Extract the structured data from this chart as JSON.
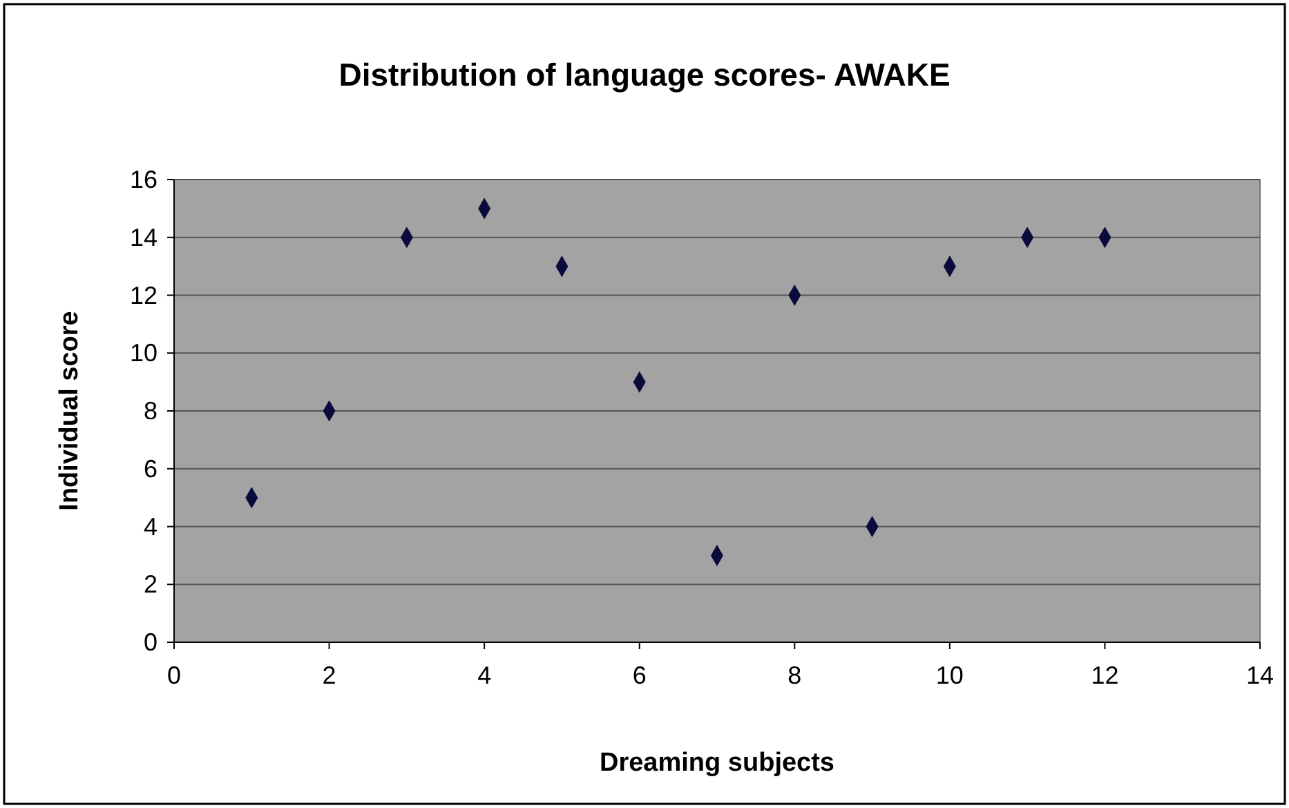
{
  "chart_data": {
    "type": "scatter",
    "title": "Distribution of language scores- AWAKE",
    "xlabel": "Dreaming subjects",
    "ylabel": "Individual score",
    "x": [
      1,
      2,
      3,
      4,
      5,
      6,
      7,
      8,
      9,
      10,
      11,
      12
    ],
    "values": [
      5,
      8,
      14,
      15,
      13,
      9,
      3,
      12,
      4,
      13,
      14,
      14
    ],
    "color": "#0a0a3c",
    "marker": "diamond",
    "xlim": [
      0,
      14
    ],
    "xticks": [
      0,
      2,
      4,
      6,
      8,
      10,
      12,
      14
    ],
    "ylim": [
      0,
      16
    ],
    "yticks": [
      0,
      2,
      4,
      6,
      8,
      10,
      12,
      14,
      16
    ],
    "grid": "y"
  }
}
